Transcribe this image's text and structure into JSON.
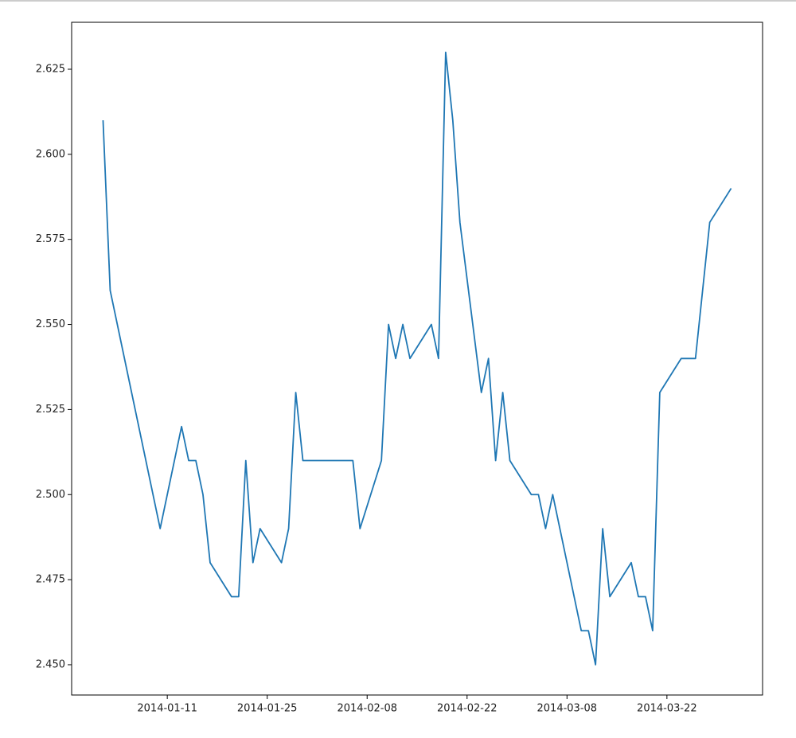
{
  "chart_data": {
    "type": "line",
    "x": [
      "2014-01-02",
      "2014-01-03",
      "2014-01-10",
      "2014-01-13",
      "2014-01-14",
      "2014-01-15",
      "2014-01-16",
      "2014-01-17",
      "2014-01-20",
      "2014-01-21",
      "2014-01-22",
      "2014-01-23",
      "2014-01-24",
      "2014-01-27",
      "2014-01-28",
      "2014-01-29",
      "2014-01-30",
      "2014-01-31",
      "2014-02-03",
      "2014-02-04",
      "2014-02-05",
      "2014-02-06",
      "2014-02-07",
      "2014-02-10",
      "2014-02-11",
      "2014-02-12",
      "2014-02-13",
      "2014-02-14",
      "2014-02-17",
      "2014-02-18",
      "2014-02-19",
      "2014-02-20",
      "2014-02-21",
      "2014-02-24",
      "2014-02-25",
      "2014-02-26",
      "2014-02-27",
      "2014-02-28",
      "2014-03-03",
      "2014-03-04",
      "2014-03-05",
      "2014-03-06",
      "2014-03-07",
      "2014-03-10",
      "2014-03-11",
      "2014-03-12",
      "2014-03-13",
      "2014-03-14",
      "2014-03-17",
      "2014-03-18",
      "2014-03-19",
      "2014-03-20",
      "2014-03-21",
      "2014-03-24",
      "2014-03-25",
      "2014-03-26",
      "2014-03-27",
      "2014-03-28",
      "2014-03-31"
    ],
    "series": [
      {
        "color": "#1f77b4",
        "values": [
          2.61,
          2.56,
          2.49,
          2.52,
          2.51,
          2.51,
          2.5,
          2.48,
          2.47,
          2.47,
          2.51,
          2.48,
          2.49,
          2.48,
          2.49,
          2.53,
          2.51,
          2.51,
          2.51,
          2.51,
          2.51,
          2.51,
          2.49,
          2.51,
          2.55,
          2.54,
          2.55,
          2.54,
          2.55,
          2.54,
          2.63,
          2.61,
          2.58,
          2.53,
          2.54,
          2.51,
          2.53,
          2.51,
          2.5,
          2.5,
          2.49,
          2.5,
          2.49,
          2.46,
          2.46,
          2.45,
          2.49,
          2.47,
          2.48,
          2.47,
          2.47,
          2.46,
          2.53,
          2.54,
          2.54,
          2.54,
          2.56,
          2.58,
          2.59
        ]
      }
    ],
    "xlim": [
      "2013-12-28T14:24:00",
      "2014-04-04T09:36:00"
    ],
    "xticks": [
      "2014-01-11",
      "2014-01-25",
      "2014-02-08",
      "2014-02-22",
      "2014-03-08",
      "2014-03-22"
    ],
    "ylim": [
      2.4411,
      2.6388
    ],
    "yticks": [
      {
        "value": 2.45,
        "label": "2.450"
      },
      {
        "value": 2.475,
        "label": "2.475"
      },
      {
        "value": 2.5,
        "label": "2.500"
      },
      {
        "value": 2.525,
        "label": "2.525"
      },
      {
        "value": 2.55,
        "label": "2.550"
      },
      {
        "value": 2.575,
        "label": "2.575"
      },
      {
        "value": 2.6,
        "label": "2.600"
      },
      {
        "value": 2.625,
        "label": "2.625"
      }
    ]
  }
}
